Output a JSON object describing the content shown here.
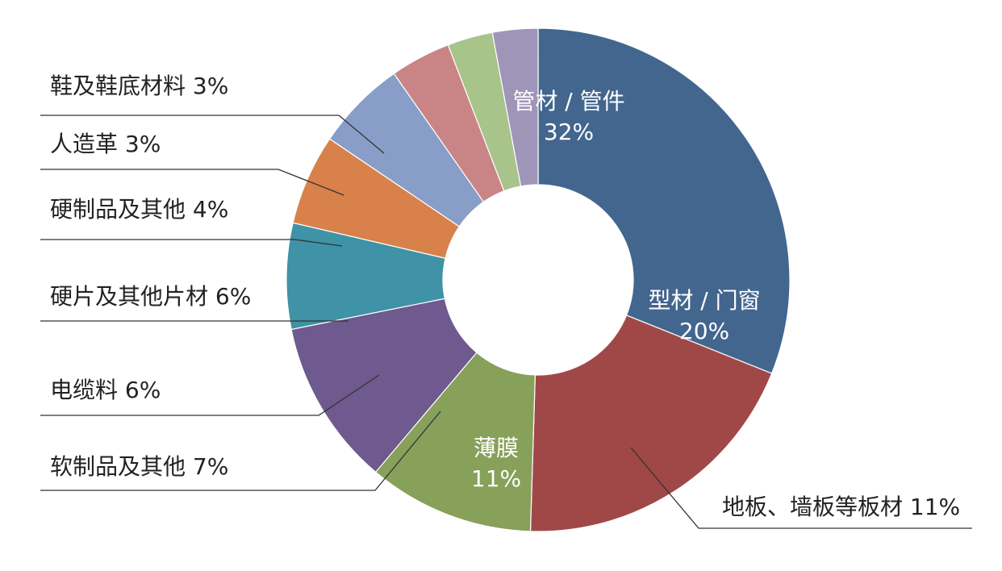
{
  "chart_data": {
    "type": "pie",
    "donut": true,
    "start": "top",
    "direction": "clockwise",
    "slices": [
      {
        "label": "管材 / 管件",
        "percent": "32%",
        "value": 32,
        "color": "#43668e",
        "label_position": "inside"
      },
      {
        "label": "型材 / 门窗",
        "percent": "20%",
        "value": 20,
        "color": "#a04848",
        "label_position": "inside"
      },
      {
        "label": "地板、墙板等板材",
        "percent": "11%",
        "value": 11,
        "color": "#87a05a",
        "label_position": "outside"
      },
      {
        "label": "薄膜",
        "percent": "11%",
        "value": 11,
        "color": "#6e5a8e",
        "label_position": "inside"
      },
      {
        "label": "软制品及其他",
        "percent": "7%",
        "value": 7,
        "color": "#4092a6",
        "label_position": "outside"
      },
      {
        "label": "电缆料",
        "percent": "6%",
        "value": 6,
        "color": "#d8814a",
        "label_position": "outside"
      },
      {
        "label": "硬片及其他片材",
        "percent": "6%",
        "value": 6,
        "color": "#889ec8",
        "label_position": "outside"
      },
      {
        "label": "硬制品及其他",
        "percent": "4%",
        "value": 4,
        "color": "#c98585",
        "label_position": "outside"
      },
      {
        "label": "人造革",
        "percent": "3%",
        "value": 3,
        "color": "#a8c48a",
        "label_position": "outside"
      },
      {
        "label": "鞋及鞋底材料",
        "percent": "3%",
        "value": 3,
        "color": "#9e95b8",
        "label_position": "outside"
      }
    ]
  }
}
